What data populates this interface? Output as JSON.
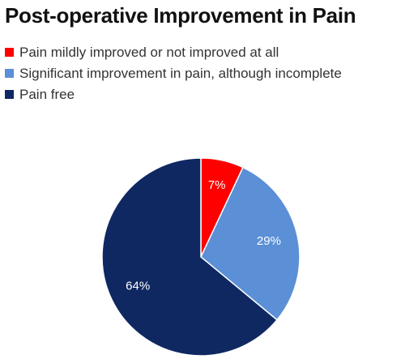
{
  "chart_data": {
    "type": "pie",
    "title": "Post-operative Improvement in Pain",
    "legend_position": "top-left",
    "slices": [
      {
        "label": "Pain mildly improved or not improved at all",
        "value": 7,
        "value_label": "7%",
        "color": "#ff0000"
      },
      {
        "label": "Significant improvement in pain, although incomplete",
        "value": 29,
        "value_label": "29%",
        "color": "#5b8fd6"
      },
      {
        "label": "Pain free",
        "value": 64,
        "value_label": "64%",
        "color": "#0f2862"
      }
    ]
  }
}
